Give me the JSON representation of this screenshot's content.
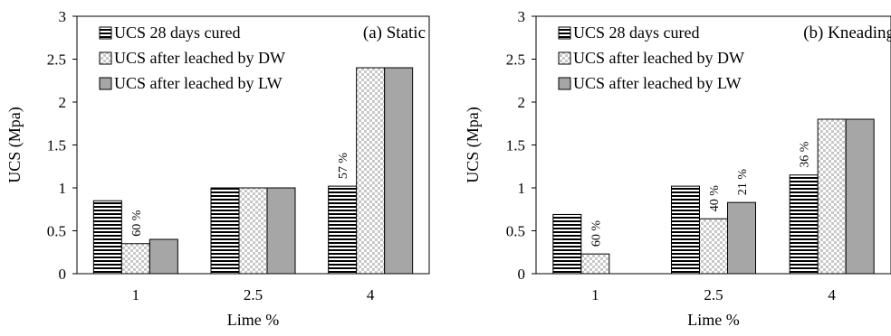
{
  "chart_data": [
    {
      "type": "bar",
      "title": "(a) Static",
      "xlabel": "Lime %",
      "ylabel": "UCS (Mpa)",
      "ylim": [
        0,
        3
      ],
      "yticks": [
        "0",
        "0.5",
        "1",
        "1.5",
        "2",
        "2.5",
        "3"
      ],
      "categories": [
        "1",
        "2.5",
        "4"
      ],
      "series": [
        {
          "name": "UCS 28 days cured",
          "values": [
            0.85,
            1.0,
            1.02
          ]
        },
        {
          "name": "UCS after leached by DW",
          "values": [
            0.35,
            1.0,
            2.4
          ]
        },
        {
          "name": "UCS after leached by LW",
          "values": [
            0.4,
            1.0,
            2.4
          ]
        }
      ],
      "annotations": [
        {
          "text": "60 %",
          "category": "1",
          "series": 1
        },
        {
          "text": "57 %",
          "category": "4",
          "series": 0
        }
      ],
      "legend_position": "top-left",
      "grid": false
    },
    {
      "type": "bar",
      "title": "(b) Kneading",
      "xlabel": "Lime %",
      "ylabel": "UCS (Mpa)",
      "ylim": [
        0,
        3
      ],
      "yticks": [
        "0",
        "0.5",
        "1",
        "1.5",
        "2",
        "2.5",
        "3"
      ],
      "categories": [
        "1",
        "2.5",
        "4"
      ],
      "series": [
        {
          "name": "UCS 28 days cured",
          "values": [
            0.69,
            1.02,
            1.15
          ]
        },
        {
          "name": "UCS after leached by DW",
          "values": [
            0.23,
            0.64,
            1.8
          ]
        },
        {
          "name": "UCS after leached by LW",
          "values": [
            0,
            0.83,
            1.8
          ]
        }
      ],
      "annotations": [
        {
          "text": "60 %",
          "category": "1",
          "series": 1
        },
        {
          "text": "40 %",
          "category": "2.5",
          "series": 1
        },
        {
          "text": "21 %",
          "category": "2.5",
          "series": 2
        },
        {
          "text": "36 %",
          "category": "4",
          "series": 0
        }
      ],
      "legend_position": "top-left",
      "grid": false
    }
  ],
  "colors": {
    "stripe": "#000000",
    "checker_light": "#ffffff",
    "checker_dark": "#c8c8c8",
    "solid_gray": "#a6a6a6"
  }
}
